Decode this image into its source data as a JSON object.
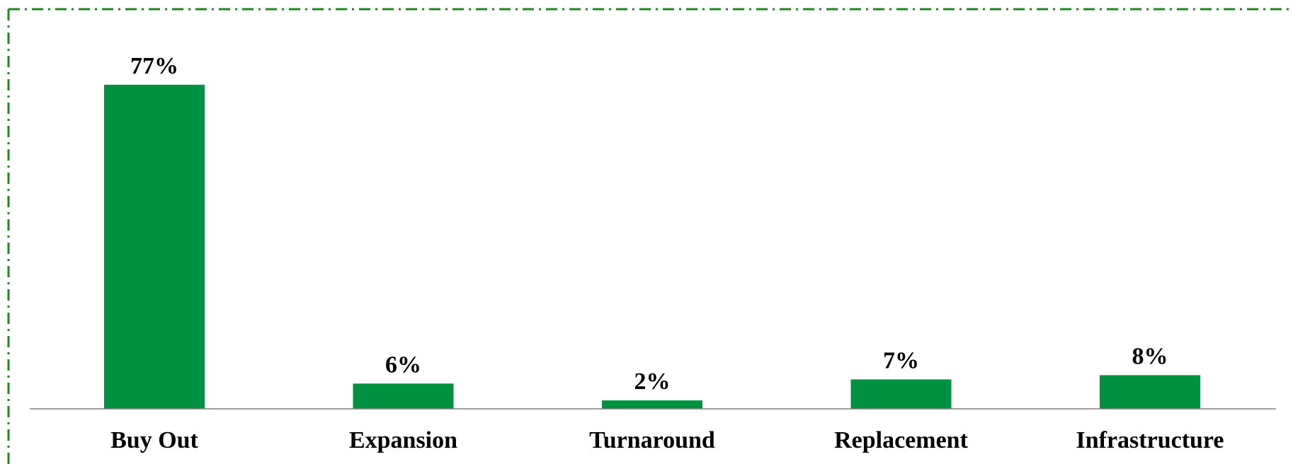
{
  "colors": {
    "bar": "#009140",
    "border": "#1a8a1a",
    "axis": "#808080",
    "text": "#000000"
  },
  "chart_data": {
    "type": "bar",
    "categories": [
      "Buy Out",
      "Expansion",
      "Turnaround",
      "Replacement",
      "Infrastructure"
    ],
    "values": [
      77,
      6,
      2,
      7,
      8
    ],
    "data_labels": [
      "77%",
      "6%",
      "2%",
      "7%",
      "8%"
    ],
    "title": "",
    "xlabel": "",
    "ylabel": "",
    "ylim": [
      0,
      82
    ],
    "grid": false,
    "legend": "none"
  }
}
